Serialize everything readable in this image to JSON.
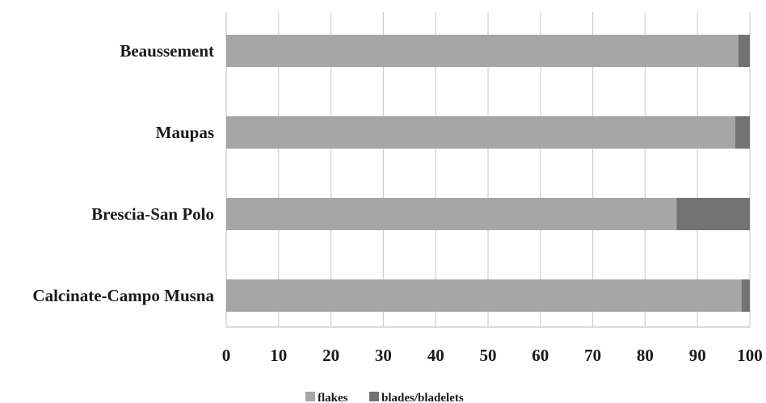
{
  "chart_data": {
    "type": "bar",
    "orientation": "horizontal",
    "stacked": true,
    "categories": [
      "Beaussement",
      "Maupas",
      "Brescia-San Polo",
      "Calcinate-Campo Musna"
    ],
    "series": [
      {
        "name": "flakes",
        "values": [
          97.8,
          97.2,
          86.0,
          98.4
        ],
        "color": "#a6a6a6"
      },
      {
        "name": "blades/bladelets",
        "values": [
          2.2,
          2.8,
          14.0,
          1.6
        ],
        "color": "#737373"
      }
    ],
    "xlim": [
      0,
      100
    ],
    "xticks": [
      0,
      10,
      20,
      30,
      40,
      50,
      60,
      70,
      80,
      90,
      100
    ],
    "title": "",
    "xlabel": "",
    "ylabel": "",
    "grid": true,
    "legend": "bottom-center"
  }
}
